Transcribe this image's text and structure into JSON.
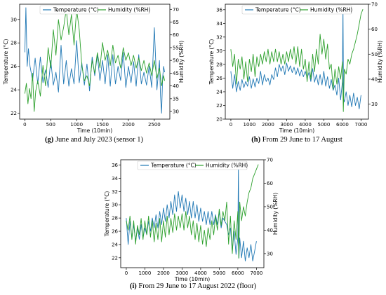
{
  "chart_data": [
    {
      "type": "line",
      "id": "g",
      "caption_label": "(g)",
      "caption_text": " June and July 2023 (sensor 1)",
      "xlabel": "Time (10min)",
      "ylabel": "Temperature (°C)",
      "y2label": "Humidity (%RH)",
      "xlim": [
        -100,
        2800
      ],
      "ylim": [
        21.5,
        31.3
      ],
      "y2lim": [
        27,
        72
      ],
      "xticks": [
        0,
        500,
        1000,
        1500,
        2000,
        2500
      ],
      "yticks": [
        22,
        24,
        26,
        28,
        30
      ],
      "y2ticks": [
        30,
        35,
        40,
        45,
        50,
        55,
        60,
        65,
        70
      ],
      "legend": {
        "position": "top-center"
      },
      "series": [
        {
          "name": "Temperature (°C)",
          "axis": "left",
          "color": "#1f77b4",
          "x": [
            0,
            20,
            45,
            70,
            100,
            150,
            200,
            250,
            300,
            350,
            400,
            450,
            500,
            550,
            600,
            650,
            700,
            750,
            800,
            850,
            900,
            950,
            1000,
            1050,
            1100,
            1150,
            1200,
            1250,
            1300,
            1350,
            1400,
            1450,
            1500,
            1550,
            1600,
            1650,
            1700,
            1750,
            1800,
            1850,
            1900,
            1950,
            2000,
            2050,
            2100,
            2150,
            2200,
            2250,
            2300,
            2350,
            2400,
            2450,
            2500,
            2550,
            2600,
            2620,
            2640,
            2660,
            2680,
            2700
          ],
          "y": [
            27.2,
            31,
            26,
            27.5,
            26,
            24.8,
            26.7,
            24.5,
            26.8,
            24.6,
            25.7,
            24.2,
            26.5,
            24.4,
            25.5,
            23.8,
            27.8,
            24.5,
            26.5,
            24.3,
            25.8,
            24.5,
            28.2,
            24.6,
            26.3,
            24.4,
            26.2,
            23.9,
            26.8,
            25.2,
            27.0,
            24.8,
            26.5,
            24.5,
            27.0,
            24.3,
            27.0,
            24.5,
            26.0,
            24.8,
            27.2,
            24.2,
            26.0,
            24.6,
            26.4,
            24.3,
            27.0,
            24.5,
            25.5,
            24.4,
            26.0,
            24.2,
            29.3,
            24.0,
            26.5,
            23.5,
            22.0,
            25.0,
            26.0,
            25.5
          ]
        },
        {
          "name": "Humidity (%RH)",
          "axis": "right",
          "color": "#2ca02c",
          "x": [
            0,
            30,
            60,
            90,
            120,
            150,
            180,
            210,
            250,
            300,
            350,
            400,
            450,
            500,
            550,
            600,
            650,
            700,
            750,
            800,
            850,
            900,
            950,
            1000,
            1050,
            1100,
            1150,
            1200,
            1250,
            1300,
            1350,
            1400,
            1450,
            1500,
            1550,
            1600,
            1650,
            1700,
            1750,
            1800,
            1850,
            1900,
            1950,
            2000,
            2050,
            2100,
            2150,
            2200,
            2250,
            2300,
            2350,
            2400,
            2450,
            2500,
            2550,
            2600,
            2640,
            2680,
            2700
          ],
          "y": [
            37,
            41,
            33,
            39,
            35,
            45,
            30,
            38,
            42,
            36,
            48,
            40,
            55,
            47,
            62,
            52,
            66,
            58,
            63,
            70,
            60,
            68,
            56,
            70,
            62,
            48,
            42,
            44,
            40,
            50,
            45,
            53,
            47,
            57,
            50,
            54,
            48,
            56,
            49,
            52,
            47,
            55,
            50,
            53,
            48,
            52,
            47,
            51,
            46,
            50,
            45,
            49,
            44,
            50,
            43,
            47,
            40,
            44,
            42
          ]
        }
      ]
    },
    {
      "type": "line",
      "id": "h",
      "caption_label": "(h)",
      "caption_text": " From 29 June to 17 August",
      "xlabel": "Time (10min)",
      "ylabel": "Temperature (°C)",
      "y2label": "Humidity (%RH)",
      "xlim": [
        -300,
        7400
      ],
      "ylim": [
        20,
        36.8
      ],
      "y2lim": [
        24,
        70
      ],
      "xticks": [
        0,
        1000,
        2000,
        3000,
        4000,
        5000,
        6000,
        7000
      ],
      "yticks": [
        20,
        22,
        24,
        26,
        28,
        30,
        32,
        34,
        36
      ],
      "y2ticks": [
        30,
        40,
        50,
        60,
        70
      ],
      "legend": {
        "position": "top-center"
      },
      "series": [
        {
          "name": "Temperature (°C)",
          "axis": "left",
          "color": "#1f77b4",
          "x": [
            0,
            100,
            200,
            300,
            400,
            500,
            600,
            700,
            800,
            900,
            1000,
            1100,
            1200,
            1300,
            1400,
            1500,
            1600,
            1700,
            1800,
            1900,
            2000,
            2100,
            2200,
            2300,
            2400,
            2500,
            2600,
            2700,
            2800,
            2900,
            3000,
            3100,
            3200,
            3300,
            3400,
            3500,
            3600,
            3700,
            3800,
            3900,
            4000,
            4100,
            4200,
            4300,
            4400,
            4500,
            4600,
            4700,
            4800,
            4900,
            5000,
            5100,
            5200,
            5300,
            5400,
            5500,
            5600,
            5700,
            5800,
            5900,
            6000,
            6030,
            6060,
            6100,
            6200,
            6300,
            6400,
            6500,
            6600,
            6700,
            6800,
            6900,
            7000
          ],
          "y": [
            27,
            24.5,
            26.5,
            24,
            25.5,
            24.2,
            25.8,
            24.6,
            25.5,
            24.8,
            26.2,
            24.5,
            25.9,
            24.7,
            26,
            25.2,
            27,
            25,
            26.5,
            25.5,
            26,
            25,
            26.5,
            25.8,
            27.5,
            26.2,
            28,
            27,
            27.8,
            26.5,
            28.2,
            27,
            27.8,
            26.8,
            27.6,
            26.5,
            27.5,
            26.3,
            27.2,
            26.2,
            27.0,
            26,
            26.8,
            25.5,
            27.4,
            25.4,
            26.5,
            25,
            26.5,
            25,
            27,
            24.8,
            26.2,
            24.5,
            25.8,
            24.2,
            25.0,
            23.5,
            26,
            22.8,
            25.5,
            36.5,
            23,
            22.5,
            24,
            22,
            23.5,
            21.8,
            23.8,
            22,
            23.2,
            21.5,
            23.5
          ]
        },
        {
          "name": "Humidity (%RH)",
          "axis": "right",
          "color": "#2ca02c",
          "x": [
            0,
            100,
            200,
            300,
            400,
            500,
            600,
            700,
            800,
            900,
            1000,
            1100,
            1200,
            1300,
            1400,
            1500,
            1600,
            1700,
            1800,
            1900,
            2000,
            2100,
            2200,
            2300,
            2400,
            2500,
            2600,
            2700,
            2800,
            2900,
            3000,
            3100,
            3200,
            3300,
            3400,
            3500,
            3600,
            3700,
            3800,
            3900,
            4000,
            4100,
            4200,
            4300,
            4400,
            4500,
            4600,
            4700,
            4800,
            4900,
            5000,
            5100,
            5200,
            5300,
            5400,
            5500,
            5600,
            5700,
            5800,
            5900,
            6000,
            6050,
            6100,
            6200,
            6300,
            6400,
            6500,
            6600,
            6700,
            6800,
            6900,
            7000,
            7100
          ],
          "y": [
            52,
            45,
            50,
            38,
            48,
            44,
            49,
            40,
            47,
            39,
            48,
            43,
            50,
            41,
            49,
            45,
            50,
            46,
            51,
            47,
            52,
            46,
            51,
            47,
            52,
            47,
            51,
            46,
            50,
            46,
            51,
            47,
            52,
            48,
            53,
            46,
            53,
            45,
            52,
            44,
            48,
            39,
            47,
            40,
            50,
            43,
            52,
            46,
            58,
            50,
            56,
            48,
            54,
            44,
            46,
            36,
            44,
            38,
            45,
            40,
            47,
            27,
            44,
            42,
            48,
            46,
            50,
            52,
            55,
            58,
            62,
            66,
            68
          ]
        }
      ]
    },
    {
      "type": "line",
      "id": "i",
      "caption_label": "(i)",
      "caption_text": " From 29 June to 17 August 2022 (floor)",
      "xlabel": "Time (10min)",
      "ylabel": "Temperature (°C)",
      "y2label": "Humidity (%RH)",
      "xlim": [
        -300,
        7400
      ],
      "ylim": [
        20.5,
        36.8
      ],
      "y2lim": [
        24,
        70
      ],
      "xticks": [
        0,
        1000,
        2000,
        3000,
        4000,
        5000,
        6000,
        7000
      ],
      "yticks": [
        22,
        24,
        26,
        28,
        30,
        32,
        34,
        36
      ],
      "y2ticks": [
        30,
        40,
        50,
        60,
        70
      ],
      "legend": {
        "position": "top-center"
      },
      "series": [
        {
          "name": "Temperature (°C)",
          "axis": "left",
          "color": "#1f77b4",
          "x": [
            0,
            100,
            200,
            300,
            400,
            500,
            600,
            700,
            800,
            900,
            1000,
            1100,
            1200,
            1300,
            1400,
            1500,
            1600,
            1700,
            1800,
            1900,
            2000,
            2100,
            2200,
            2300,
            2400,
            2500,
            2600,
            2700,
            2800,
            2900,
            3000,
            3100,
            3200,
            3300,
            3400,
            3500,
            3600,
            3700,
            3800,
            3900,
            4000,
            4100,
            4200,
            4300,
            4400,
            4500,
            4600,
            4700,
            4800,
            4900,
            5000,
            5100,
            5200,
            5300,
            5400,
            5500,
            5600,
            5700,
            5800,
            5900,
            6000,
            6030,
            6060,
            6100,
            6200,
            6300,
            6400,
            6500,
            6600,
            6700,
            6800,
            6900,
            7000
          ],
          "y": [
            28,
            24,
            27.5,
            25,
            27,
            24.5,
            26.5,
            24.8,
            27,
            25,
            26.5,
            25.5,
            27.5,
            26,
            28,
            26.5,
            28.5,
            26.5,
            29,
            27,
            29.5,
            27.5,
            30,
            28,
            30.5,
            28.5,
            31.5,
            29,
            32,
            29.5,
            31.5,
            29,
            31,
            28.5,
            30.5,
            28,
            30.5,
            28,
            30,
            27.5,
            29.5,
            27.5,
            29,
            27,
            29,
            27,
            29,
            27,
            28.5,
            27,
            29,
            26.5,
            28,
            27.5,
            27,
            25.5,
            26.5,
            23,
            26,
            22.5,
            25,
            36,
            22,
            25,
            22,
            24.5,
            21.5,
            23.5,
            22,
            24,
            21.5,
            23,
            24.5
          ]
        },
        {
          "name": "Humidity (%RH)",
          "axis": "right",
          "color": "#2ca02c",
          "x": [
            0,
            100,
            200,
            300,
            400,
            500,
            600,
            700,
            800,
            900,
            1000,
            1100,
            1200,
            1300,
            1400,
            1500,
            1600,
            1700,
            1800,
            1900,
            2000,
            2100,
            2200,
            2300,
            2400,
            2500,
            2600,
            2700,
            2800,
            2900,
            3000,
            3100,
            3200,
            3300,
            3400,
            3500,
            3600,
            3700,
            3800,
            3900,
            4000,
            4100,
            4200,
            4300,
            4400,
            4500,
            4600,
            4700,
            4800,
            4900,
            5000,
            5100,
            5200,
            5300,
            5400,
            5500,
            5600,
            5700,
            5800,
            5900,
            6000,
            6050,
            6100,
            6200,
            6300,
            6400,
            6500,
            6600,
            6700,
            6800,
            6900,
            7000,
            7100
          ],
          "y": [
            44,
            40,
            46,
            36,
            44,
            34,
            42,
            38,
            45,
            36,
            44,
            38,
            46,
            37,
            44,
            35,
            43,
            36,
            45,
            35,
            44,
            37,
            46,
            38,
            45,
            39,
            47,
            40,
            46,
            41,
            47,
            40,
            48,
            41,
            46,
            38,
            44,
            36,
            43,
            35,
            42,
            34,
            40,
            33,
            41,
            36,
            44,
            38,
            46,
            40,
            49,
            42,
            48,
            44,
            52,
            34,
            46,
            30,
            44,
            36,
            48,
            28,
            52,
            44,
            50,
            46,
            52,
            56,
            58,
            62,
            64,
            66,
            68
          ]
        }
      ]
    }
  ]
}
